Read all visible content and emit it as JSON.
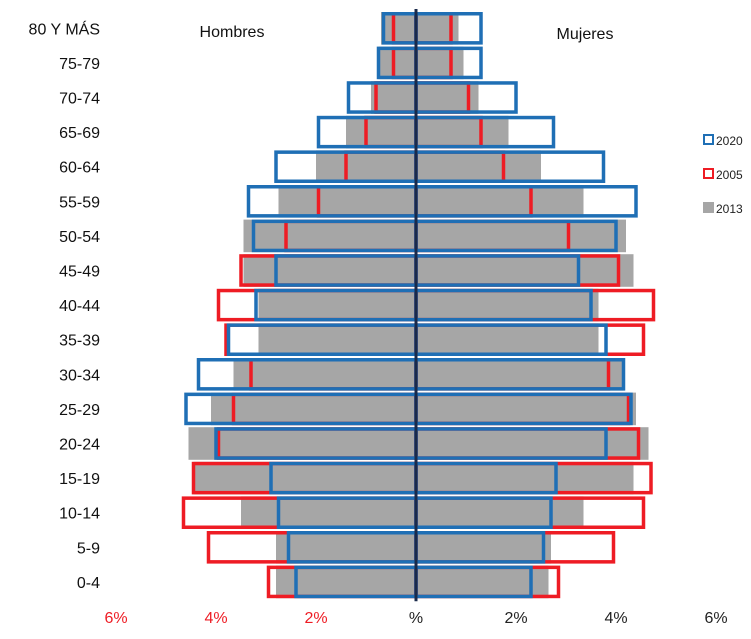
{
  "chart_data": {
    "type": "bar",
    "subtype": "population-pyramid",
    "categories": [
      "80 Y MÁS",
      "75-79",
      "70-74",
      "65-69",
      "60-64",
      "55-59",
      "50-54",
      "45-49",
      "40-44",
      "35-39",
      "30-34",
      "25-29",
      "20-24",
      "15-19",
      "10-14",
      "5-9",
      "0-4"
    ],
    "left_group_label": "Hombres",
    "right_group_label": "Mujeres",
    "series": [
      {
        "name": "2013",
        "style": "filled",
        "color": "#a6a6a6",
        "hombres": [
          0.7,
          0.75,
          0.9,
          1.4,
          2.0,
          2.75,
          3.45,
          3.45,
          3.15,
          3.15,
          3.65,
          4.1,
          4.55,
          4.45,
          3.5,
          2.8,
          2.8
        ],
        "mujeres": [
          0.85,
          0.95,
          1.25,
          1.85,
          2.5,
          3.35,
          4.2,
          4.35,
          3.65,
          3.65,
          4.15,
          4.4,
          4.65,
          4.35,
          3.35,
          2.7,
          2.65
        ]
      },
      {
        "name": "2005",
        "style": "outline",
        "color": "#ee1c24",
        "hombres": [
          0.45,
          0.45,
          0.8,
          1.0,
          1.4,
          1.95,
          2.6,
          3.5,
          3.95,
          3.8,
          3.3,
          3.65,
          3.95,
          4.45,
          4.65,
          4.15,
          2.95
        ],
        "mujeres": [
          0.7,
          0.7,
          1.05,
          1.3,
          1.75,
          2.3,
          3.05,
          4.05,
          4.75,
          4.55,
          3.85,
          4.25,
          4.45,
          4.7,
          4.55,
          3.95,
          2.85
        ]
      },
      {
        "name": "2020",
        "style": "outline",
        "color": "#1f6fb5",
        "hombres": [
          0.65,
          0.75,
          1.35,
          1.95,
          2.8,
          3.35,
          3.25,
          2.8,
          3.2,
          3.75,
          4.35,
          4.6,
          4.0,
          2.9,
          2.75,
          2.55,
          2.4
        ],
        "mujeres": [
          1.3,
          1.3,
          2.0,
          2.75,
          3.75,
          4.4,
          4.0,
          3.25,
          3.5,
          3.8,
          4.15,
          4.3,
          3.8,
          2.8,
          2.7,
          2.55,
          2.3
        ]
      }
    ],
    "legend": {
      "placement": "right",
      "items": [
        {
          "label": "2020",
          "color": "#1f6fb5",
          "style": "outline"
        },
        {
          "label": "2005",
          "color": "#ee1c24",
          "style": "outline"
        },
        {
          "label": "2013",
          "color": "#a6a6a6",
          "style": "filled"
        }
      ]
    },
    "x_axis": {
      "range_left": 6,
      "range_right": 6,
      "ticks": [
        {
          "value": -6,
          "label": "6%",
          "color": "#ee1c24"
        },
        {
          "value": -4,
          "label": "4%",
          "color": "#ee1c24"
        },
        {
          "value": -2,
          "label": "2%",
          "color": "#ee1c24"
        },
        {
          "value": 0,
          "label": "%",
          "color": "#222222"
        },
        {
          "value": 2,
          "label": "2%",
          "color": "#222222"
        },
        {
          "value": 4,
          "label": "4%",
          "color": "#222222"
        },
        {
          "value": 6,
          "label": "6%",
          "color": "#222222"
        }
      ]
    },
    "center_axis_color": "#1a2a4a"
  }
}
